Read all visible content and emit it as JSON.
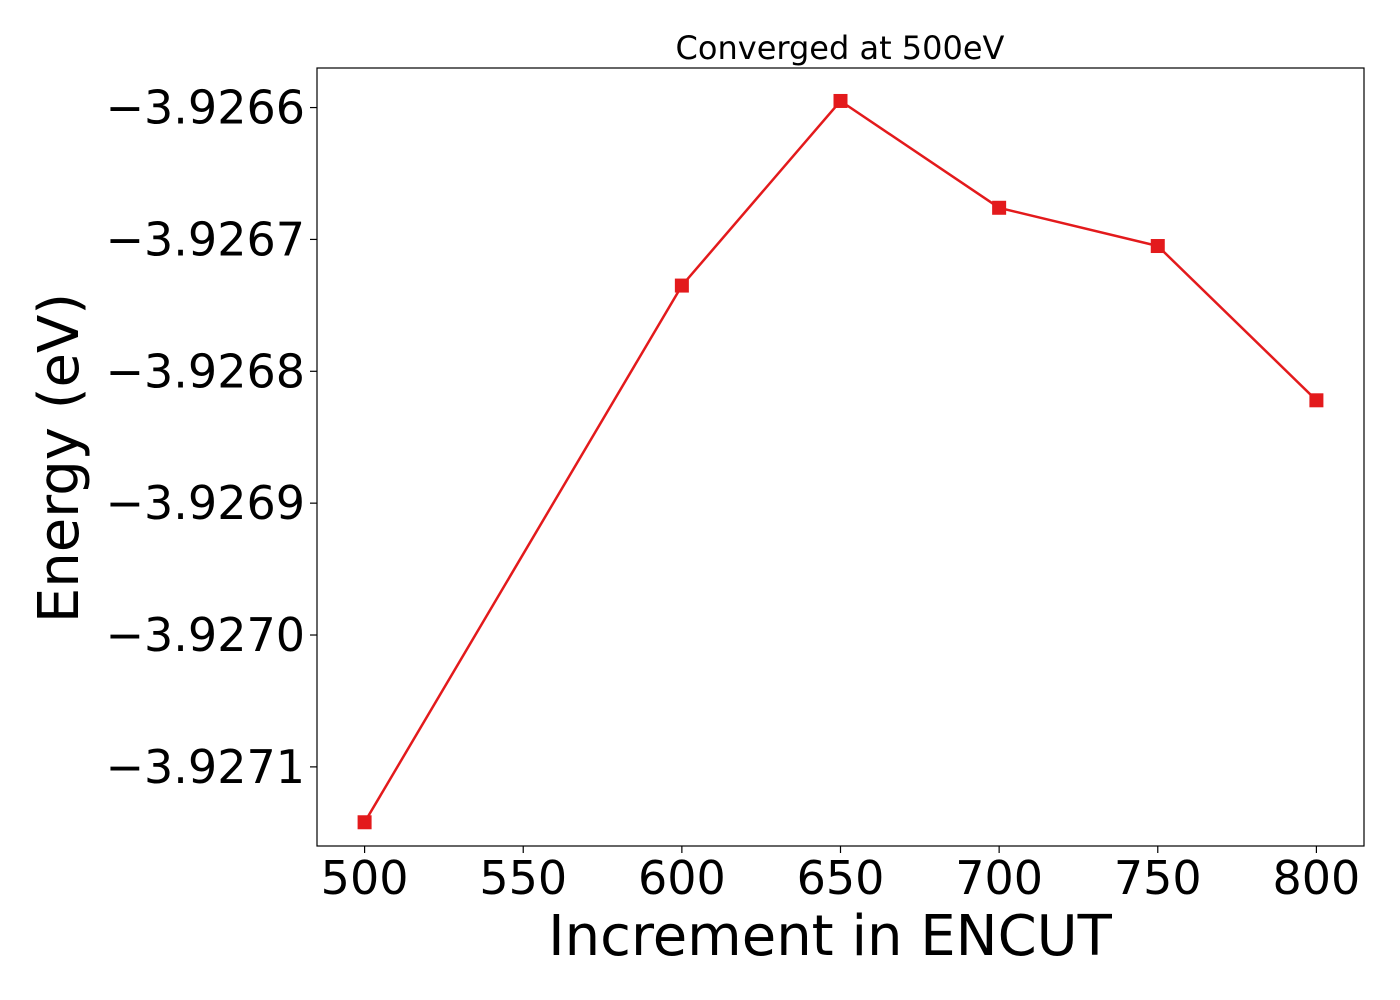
{
  "chart_data": {
    "type": "line",
    "title": "Converged at 500eV",
    "xlabel": "Increment in ENCUT",
    "ylabel": "Energy (eV)",
    "xlim": [
      485,
      815
    ],
    "ylim": [
      -3.92716,
      -3.92657
    ],
    "xticks": [
      500,
      550,
      600,
      650,
      700,
      750,
      800
    ],
    "xtick_labels": [
      "500",
      "550",
      "600",
      "650",
      "700",
      "750",
      "800"
    ],
    "yticks": [
      -3.9266,
      -3.9267,
      -3.9268,
      -3.9269,
      -3.927,
      -3.9271
    ],
    "ytick_labels": [
      "−3.9266",
      "−3.9267",
      "−3.9268",
      "−3.9269",
      "−3.9270",
      "−3.9271"
    ],
    "grid": false,
    "series": [
      {
        "color": "#e31a1c",
        "marker": "square",
        "x": [
          500,
          600,
          650,
          700,
          750,
          800
        ],
        "y": [
          -3.927142,
          -3.926735,
          -3.926595,
          -3.926676,
          -3.926705,
          -3.926822
        ]
      }
    ]
  }
}
